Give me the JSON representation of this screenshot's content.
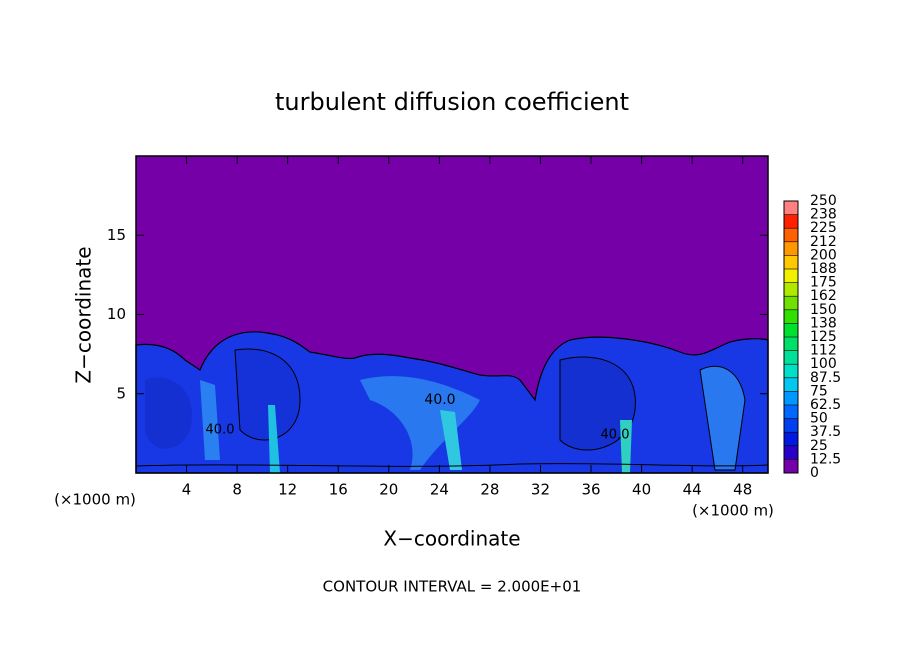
{
  "chart_data": {
    "type": "contour",
    "title": "turbulent diffusion coefficient",
    "x_label": "X−coordinate",
    "y_label": "Z−coordinate",
    "x_unit": "(×1000 m)",
    "footer": "CONTOUR INTERVAL = 2.000E+01",
    "contour_labels": [
      "40.0",
      "40.0",
      "40.0"
    ],
    "xlim": [
      0,
      50
    ],
    "xticks": [
      4,
      8,
      12,
      16,
      20,
      24,
      28,
      32,
      36,
      40,
      44,
      48
    ],
    "ylim": [
      0,
      20
    ],
    "yticks": [
      5,
      10,
      15
    ],
    "colorbar": {
      "levels": [
        0,
        12.5,
        25,
        37.5,
        50,
        62.5,
        75,
        87.5,
        100,
        112,
        125,
        138,
        150,
        162,
        175,
        188,
        200,
        212,
        225,
        238,
        250
      ],
      "colors": [
        "#7400a8",
        "#2a00c8",
        "#0018e0",
        "#0040f0",
        "#0068ff",
        "#0098ff",
        "#00c8f0",
        "#00e0c8",
        "#00e098",
        "#00e068",
        "#00e030",
        "#30e000",
        "#70e000",
        "#b0e800",
        "#f0f000",
        "#ffc800",
        "#ff9800",
        "#ff6000",
        "#ff2000",
        "#ff8080"
      ]
    }
  }
}
